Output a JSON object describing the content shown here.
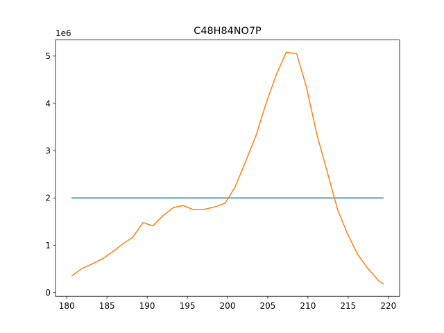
{
  "chart_data": {
    "type": "line",
    "title": "C48H84NO7P",
    "xlabel": "",
    "ylabel": "",
    "y_offset_label": "1e6",
    "xlim": [
      178.6,
      221.4
    ],
    "ylim": [
      -0.08,
      5.34
    ],
    "x_ticks": [
      180,
      185,
      190,
      195,
      200,
      205,
      210,
      215,
      220
    ],
    "y_ticks": [
      0,
      1,
      2,
      3,
      4,
      5
    ],
    "grid": false,
    "series": [
      {
        "color": "#1f77b4",
        "x": [
          180.6,
          219.4
        ],
        "y": [
          2.0,
          2.0
        ]
      },
      {
        "color": "#ff7f0e",
        "x": [
          180.6,
          181.9,
          183.1,
          184.4,
          185.7,
          186.9,
          188.2,
          189.5,
          190.7,
          192.0,
          193.3,
          194.5,
          195.8,
          197.1,
          198.4,
          199.7,
          200.9,
          202.2,
          203.5,
          204.7,
          206.0,
          207.3,
          208.6,
          209.8,
          211.1,
          212.4,
          213.7,
          214.9,
          216.2,
          217.5,
          218.8,
          219.4
        ],
        "y": [
          0.35,
          0.51,
          0.6,
          0.71,
          0.86,
          1.02,
          1.17,
          1.48,
          1.41,
          1.63,
          1.8,
          1.84,
          1.75,
          1.76,
          1.81,
          1.89,
          2.22,
          2.75,
          3.3,
          3.95,
          4.58,
          5.08,
          5.05,
          4.35,
          3.35,
          2.55,
          1.75,
          1.25,
          0.8,
          0.5,
          0.25,
          0.18
        ]
      }
    ]
  }
}
